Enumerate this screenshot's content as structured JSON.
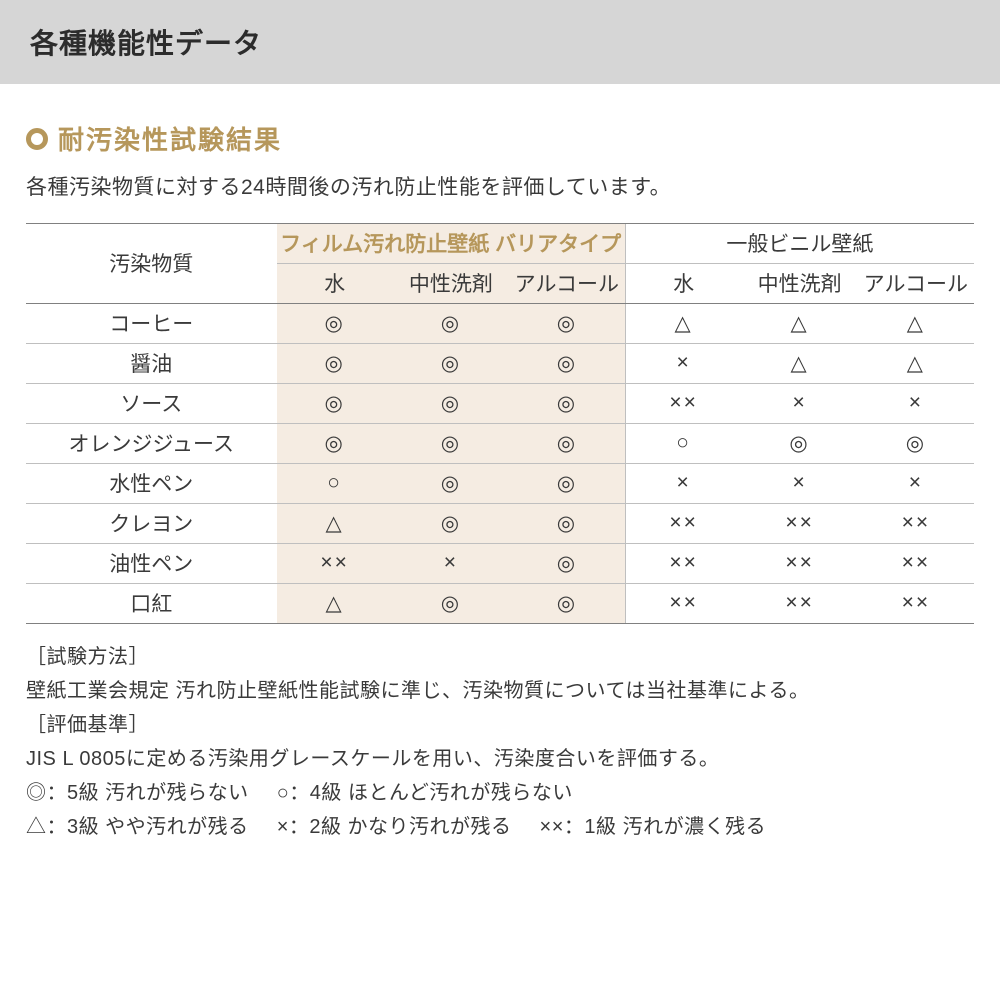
{
  "header": {
    "title": "各種機能性データ"
  },
  "section": {
    "title": "耐汚染性試験結果",
    "lead": "各種汚染物質に対する24時間後の汚れ防止性能を評価しています。"
  },
  "table": {
    "corner_label": "汚染物質",
    "groups": [
      {
        "label": "フィルム汚れ防止壁紙 バリアタイプ",
        "highlight": true
      },
      {
        "label": "一般ビニル壁紙",
        "highlight": false
      }
    ],
    "sub_columns": [
      "水",
      "中性洗剤",
      "アルコール"
    ],
    "rows": [
      {
        "label": "コーヒー",
        "a": [
          "◎",
          "◎",
          "◎"
        ],
        "b": [
          "△",
          "△",
          "△"
        ]
      },
      {
        "label": "醤油",
        "a": [
          "◎",
          "◎",
          "◎"
        ],
        "b": [
          "×",
          "△",
          "△"
        ]
      },
      {
        "label": "ソース",
        "a": [
          "◎",
          "◎",
          "◎"
        ],
        "b": [
          "××",
          "×",
          "×"
        ]
      },
      {
        "label": "オレンジジュース",
        "a": [
          "◎",
          "◎",
          "◎"
        ],
        "b": [
          "○",
          "◎",
          "◎"
        ]
      },
      {
        "label": "水性ペン",
        "a": [
          "○",
          "◎",
          "◎"
        ],
        "b": [
          "×",
          "×",
          "×"
        ]
      },
      {
        "label": "クレヨン",
        "a": [
          "△",
          "◎",
          "◎"
        ],
        "b": [
          "××",
          "××",
          "××"
        ]
      },
      {
        "label": "油性ペン",
        "a": [
          "××",
          "×",
          "◎"
        ],
        "b": [
          "××",
          "××",
          "××"
        ]
      },
      {
        "label": "口紅",
        "a": [
          "△",
          "◎",
          "◎"
        ],
        "b": [
          "××",
          "××",
          "××"
        ]
      }
    ]
  },
  "notes": {
    "method_tag": "［試験方法］",
    "method_body": "壁紙工業会規定 汚れ防止壁紙性能試験に準じ、汚染物質については当社基準による。",
    "criteria_tag": "［評価基準］",
    "criteria_body": "JIS L 0805に定める汚染用グレースケールを用い、汚染度合いを評価する。",
    "legend1a": "◎：5級 汚れが残らない",
    "legend1b": "○：4級 ほとんど汚れが残らない",
    "legend2a": "△：3級 やや汚れが残る",
    "legend2b": "×：2級 かなり汚れが残る",
    "legend2c": "××：1級 汚れが濃く残る"
  },
  "style": {
    "accent_color": "#b6975b",
    "highlight_bg": "#f5ece2",
    "header_band_bg": "#d6d6d6",
    "border_strong": "#808080",
    "border_light": "#bfbfbf",
    "text_color": "#3a3a3a"
  }
}
